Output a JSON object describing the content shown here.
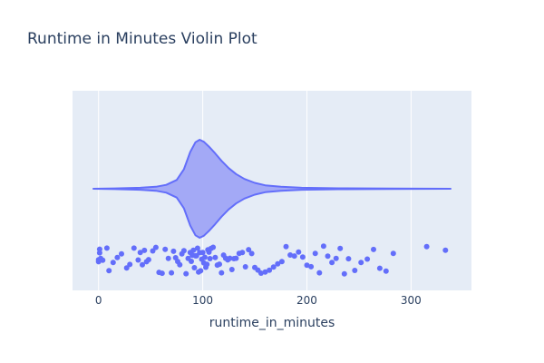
{
  "chart_data": {
    "type": "violin",
    "title": "Runtime in Minutes Violin Plot",
    "xlabel": "runtime_in_minutes",
    "ylabel": "",
    "x_range": [
      -25,
      358
    ],
    "x_ticks": [
      0,
      100,
      200,
      300
    ],
    "grid": true,
    "show_points": "all",
    "density_curve": [
      [
        -5,
        0.0
      ],
      [
        20,
        0.01
      ],
      [
        40,
        0.02
      ],
      [
        55,
        0.04
      ],
      [
        65,
        0.08
      ],
      [
        75,
        0.18
      ],
      [
        82,
        0.4
      ],
      [
        88,
        0.75
      ],
      [
        93,
        0.95
      ],
      [
        97,
        1.0
      ],
      [
        101,
        0.96
      ],
      [
        106,
        0.86
      ],
      [
        112,
        0.72
      ],
      [
        118,
        0.57
      ],
      [
        125,
        0.42
      ],
      [
        132,
        0.3
      ],
      [
        140,
        0.2
      ],
      [
        150,
        0.12
      ],
      [
        160,
        0.07
      ],
      [
        175,
        0.04
      ],
      [
        195,
        0.02
      ],
      [
        230,
        0.01
      ],
      [
        280,
        0.005
      ],
      [
        338,
        0.0
      ]
    ],
    "points": [
      0,
      0,
      1,
      1,
      2,
      4,
      8,
      10,
      14,
      18,
      22,
      27,
      30,
      34,
      38,
      40,
      42,
      44,
      46,
      48,
      52,
      55,
      58,
      61,
      64,
      67,
      70,
      72,
      74,
      76,
      78,
      80,
      82,
      84,
      86,
      88,
      89,
      90,
      91,
      92,
      93,
      94,
      95,
      96,
      97,
      98,
      99,
      100,
      101,
      102,
      103,
      104,
      105,
      106,
      107,
      108,
      110,
      112,
      114,
      116,
      118,
      120,
      122,
      124,
      126,
      128,
      130,
      132,
      135,
      138,
      141,
      144,
      147,
      150,
      153,
      156,
      160,
      164,
      168,
      172,
      176,
      180,
      184,
      188,
      192,
      196,
      200,
      204,
      208,
      212,
      216,
      220,
      224,
      228,
      232,
      236,
      240,
      246,
      252,
      258,
      264,
      270,
      276,
      283,
      315,
      333
    ]
  },
  "colors": {
    "series": "#636efa",
    "violin_fill": "#a3a9f6",
    "plot_bg": "#e5ecf6",
    "grid": "#ffffff",
    "text": "#2a3f5f"
  }
}
